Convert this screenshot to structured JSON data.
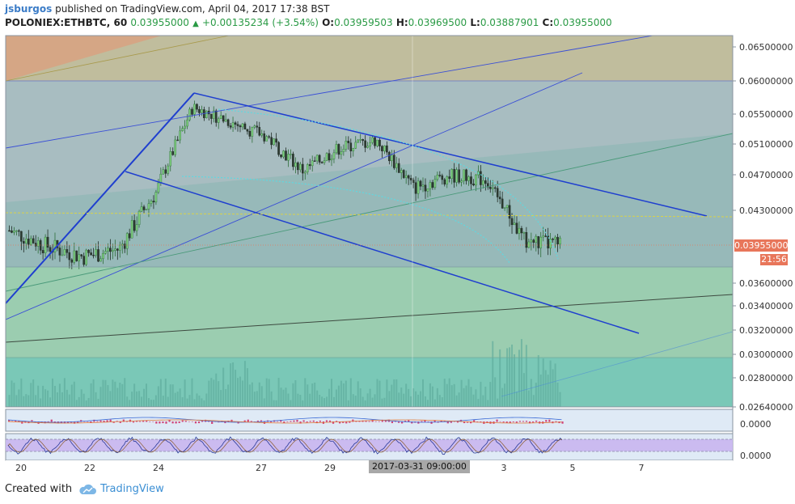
{
  "header": {
    "author": "jsburgos",
    "published_text": "published on TradingView.com, April 04, 2017 17:38 BST",
    "symbol": "POLONIEX:ETHBTC, 60",
    "last": "0.03955000",
    "change": "+0.00135234 (+3.54%)",
    "open_label": "O:",
    "open": "0.03959503",
    "high_label": "H:",
    "high": "0.03969500",
    "low_label": "L:",
    "low": "0.03887901",
    "close_label": "C:",
    "close": "0.03955000"
  },
  "price_tag": "0.03955000",
  "timer": "21:56",
  "x_highlight": "2017-03-31 09:00:00",
  "footer": {
    "created_with": "Created with",
    "brand": "TradingView"
  },
  "colors": {
    "up": "#2a9a45",
    "price_tag": "#e8765a",
    "trendline": "#1f3fcf",
    "background": "#ffffff",
    "oscillator_band": "#c9b6ef"
  },
  "chart_data": {
    "type": "line",
    "title": "",
    "price_axis": {
      "ticks": [
        "0.06500000",
        "0.06000000",
        "0.05500000",
        "0.05100000",
        "0.04700000",
        "0.04300000",
        "0.03955000",
        "0.03600000",
        "0.03400000",
        "0.03200000",
        "0.03000000",
        "0.02800000",
        "0.02640000"
      ],
      "ylim": [
        0.0264,
        0.0665
      ]
    },
    "x_axis": {
      "ticks": [
        "20",
        "22",
        "24",
        "27",
        "29",
        "3",
        "5",
        "7"
      ],
      "highlighted": "2017-03-31 09:00:00"
    },
    "series": [
      {
        "name": "",
        "x": [
          "Mar 20",
          "Mar 21",
          "Mar 22",
          "Mar 23",
          "Mar 24",
          "Mar 25",
          "Mar 26",
          "Mar 27",
          "Mar 28",
          "Mar 29",
          "Mar 30",
          "Mar 31",
          "Apr 01",
          "Apr 02",
          "Apr 03",
          "Apr 04"
        ],
        "values": [
          0.041,
          0.0395,
          0.0385,
          0.0392,
          0.045,
          0.056,
          0.054,
          0.052,
          0.0475,
          0.0505,
          0.0515,
          0.0455,
          0.047,
          0.0465,
          0.04,
          0.03955
        ]
      }
    ],
    "macd_axis_tick": "0.0000",
    "stoch_axis_tick": "0.0000"
  }
}
